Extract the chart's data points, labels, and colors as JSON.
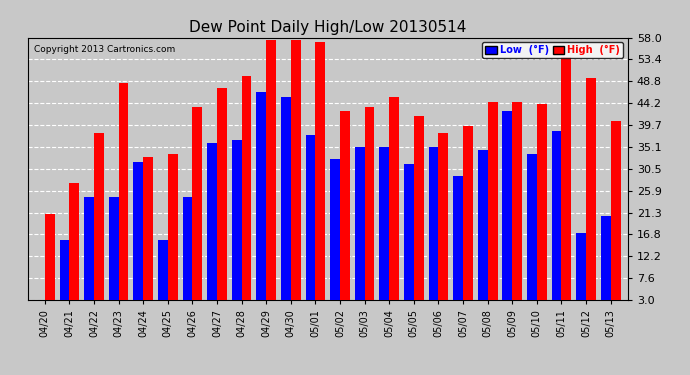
{
  "title": "Dew Point Daily High/Low 20130514",
  "copyright": "Copyright 2013 Cartronics.com",
  "categories": [
    "04/20",
    "04/21",
    "04/22",
    "04/23",
    "04/24",
    "04/25",
    "04/26",
    "04/27",
    "04/28",
    "04/29",
    "04/30",
    "05/01",
    "05/02",
    "05/03",
    "05/04",
    "05/05",
    "05/06",
    "05/07",
    "05/08",
    "05/09",
    "05/10",
    "05/11",
    "05/12",
    "05/13"
  ],
  "low_values": [
    3.0,
    15.5,
    24.5,
    24.5,
    32.0,
    15.5,
    24.5,
    36.0,
    36.5,
    46.5,
    45.5,
    37.5,
    32.5,
    35.0,
    35.0,
    31.5,
    35.0,
    29.0,
    34.5,
    42.5,
    33.5,
    38.5,
    17.0,
    20.5
  ],
  "high_values": [
    21.0,
    27.5,
    38.0,
    48.5,
    33.0,
    33.5,
    43.5,
    47.5,
    50.0,
    57.5,
    57.5,
    57.0,
    42.5,
    43.5,
    45.5,
    41.5,
    38.0,
    39.5,
    44.5,
    44.5,
    44.0,
    54.0,
    49.5,
    40.5
  ],
  "low_color": "#0000ff",
  "high_color": "#ff0000",
  "bg_color": "#c8c8c8",
  "plot_bg_color": "#c8c8c8",
  "grid_color": "#ffffff",
  "yticks": [
    3.0,
    7.6,
    12.2,
    16.8,
    21.3,
    25.9,
    30.5,
    35.1,
    39.7,
    44.2,
    48.8,
    53.4,
    58.0
  ],
  "ylim": [
    3.0,
    58.0
  ],
  "ymin": 3.0,
  "legend_low_label": "Low  (°F)",
  "legend_high_label": "High  (°F)"
}
